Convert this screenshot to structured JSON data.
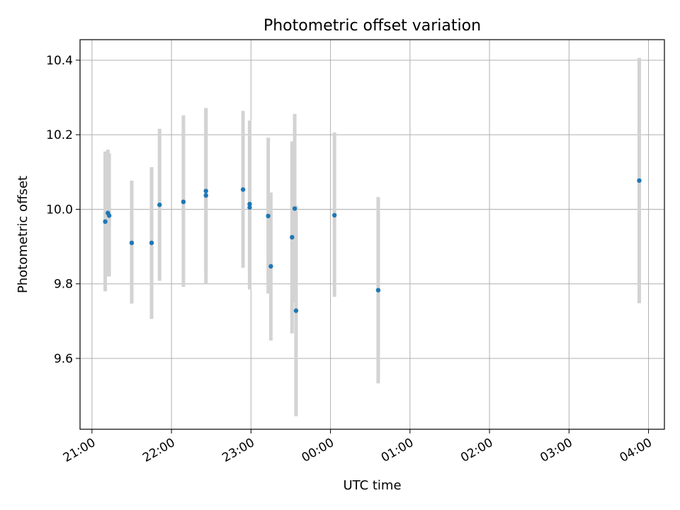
{
  "chart_data": {
    "type": "scatter",
    "title": "Photometric offset variation",
    "xlabel": "UTC time",
    "ylabel": "Photometric offset",
    "grid": true,
    "xlim": [
      "20:51",
      "04:12"
    ],
    "ylim": [
      9.41,
      10.455
    ],
    "x_ticks": [
      "21:00",
      "22:00",
      "23:00",
      "00:00",
      "01:00",
      "02:00",
      "03:00",
      "04:00"
    ],
    "y_ticks": [
      "9.6",
      "9.8",
      "10.0",
      "10.2",
      "10.4"
    ],
    "marker_color": "#1f77b4",
    "errorbar_color": "#d3d3d3",
    "points": [
      {
        "x": "21:10",
        "y": 9.967,
        "err_low": 9.78,
        "err_high": 10.155
      },
      {
        "x": "21:12",
        "y": 9.99,
        "err_low": 9.82,
        "err_high": 10.16
      },
      {
        "x": "21:13",
        "y": 9.983,
        "err_low": 9.82,
        "err_high": 10.15
      },
      {
        "x": "21:30",
        "y": 9.91,
        "err_low": 9.747,
        "err_high": 10.077
      },
      {
        "x": "21:45",
        "y": 9.91,
        "err_low": 9.706,
        "err_high": 10.113
      },
      {
        "x": "21:51",
        "y": 10.012,
        "err_low": 9.808,
        "err_high": 10.216
      },
      {
        "x": "22:09",
        "y": 10.02,
        "err_low": 9.792,
        "err_high": 10.252
      },
      {
        "x": "22:26",
        "y": 10.037,
        "err_low": 9.8,
        "err_high": 10.272
      },
      {
        "x": "22:26",
        "y": 10.049,
        "err_low": 9.83,
        "err_high": 10.27
      },
      {
        "x": "22:54",
        "y": 10.053,
        "err_low": 9.843,
        "err_high": 10.264
      },
      {
        "x": "22:59",
        "y": 10.014,
        "err_low": 9.79,
        "err_high": 10.238
      },
      {
        "x": "22:59",
        "y": 10.005,
        "err_low": 9.785,
        "err_high": 10.23
      },
      {
        "x": "23:13",
        "y": 9.982,
        "err_low": 9.774,
        "err_high": 10.192
      },
      {
        "x": "23:15",
        "y": 9.847,
        "err_low": 9.648,
        "err_high": 10.045
      },
      {
        "x": "23:31",
        "y": 9.925,
        "err_low": 9.667,
        "err_high": 10.182
      },
      {
        "x": "23:33",
        "y": 10.002,
        "err_low": 9.75,
        "err_high": 10.256
      },
      {
        "x": "23:34",
        "y": 9.728,
        "err_low": 9.445,
        "err_high": 10.01
      },
      {
        "x": "00:03",
        "y": 9.984,
        "err_low": 9.765,
        "err_high": 10.206
      },
      {
        "x": "00:36",
        "y": 9.783,
        "err_low": 9.533,
        "err_high": 10.033
      },
      {
        "x": "03:53",
        "y": 10.077,
        "err_low": 9.748,
        "err_high": 10.406
      }
    ]
  }
}
